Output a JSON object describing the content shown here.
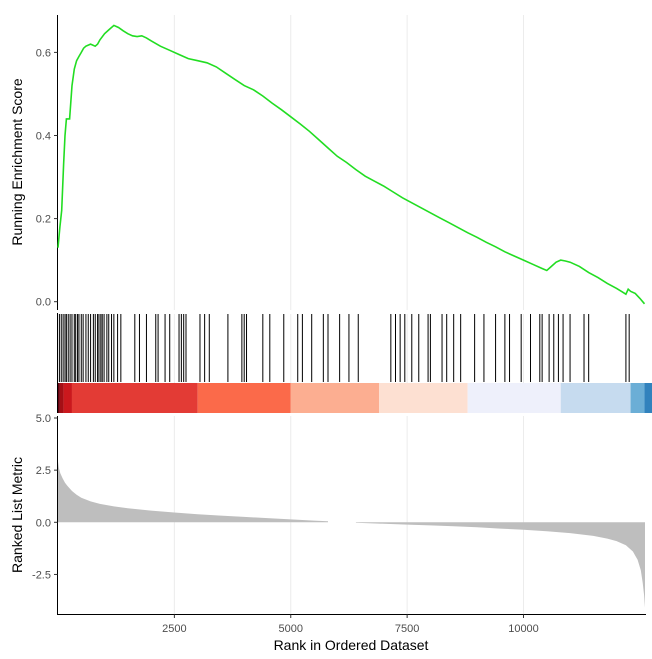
{
  "chart_data": {
    "type": "line",
    "panels": {
      "enrichment": {
        "ylabel": "Running Enrichment Score",
        "yticks": [
          0.0,
          0.2,
          0.4,
          0.6
        ],
        "ytick_labels": [
          "0.0",
          "0.2",
          "0.4",
          "0.6"
        ],
        "ylim": [
          -0.02,
          0.69
        ],
        "color": "#22dd22",
        "points": [
          [
            0,
            0.13
          ],
          [
            40,
            0.18
          ],
          [
            80,
            0.22
          ],
          [
            120,
            0.33
          ],
          [
            150,
            0.4
          ],
          [
            180,
            0.44
          ],
          [
            250,
            0.44
          ],
          [
            300,
            0.52
          ],
          [
            350,
            0.56
          ],
          [
            400,
            0.58
          ],
          [
            450,
            0.59
          ],
          [
            500,
            0.6
          ],
          [
            550,
            0.61
          ],
          [
            600,
            0.615
          ],
          [
            700,
            0.62
          ],
          [
            800,
            0.615
          ],
          [
            850,
            0.62
          ],
          [
            900,
            0.63
          ],
          [
            1000,
            0.645
          ],
          [
            1100,
            0.655
          ],
          [
            1200,
            0.665
          ],
          [
            1300,
            0.66
          ],
          [
            1400,
            0.652
          ],
          [
            1500,
            0.645
          ],
          [
            1600,
            0.64
          ],
          [
            1700,
            0.638
          ],
          [
            1800,
            0.64
          ],
          [
            1900,
            0.635
          ],
          [
            2000,
            0.628
          ],
          [
            2200,
            0.615
          ],
          [
            2400,
            0.605
          ],
          [
            2600,
            0.595
          ],
          [
            2800,
            0.585
          ],
          [
            3000,
            0.58
          ],
          [
            3200,
            0.575
          ],
          [
            3400,
            0.565
          ],
          [
            3600,
            0.55
          ],
          [
            3800,
            0.535
          ],
          [
            4000,
            0.52
          ],
          [
            4200,
            0.51
          ],
          [
            4400,
            0.495
          ],
          [
            4600,
            0.478
          ],
          [
            4800,
            0.462
          ],
          [
            5000,
            0.445
          ],
          [
            5200,
            0.428
          ],
          [
            5400,
            0.41
          ],
          [
            5600,
            0.39
          ],
          [
            5800,
            0.37
          ],
          [
            6000,
            0.35
          ],
          [
            6200,
            0.335
          ],
          [
            6400,
            0.318
          ],
          [
            6600,
            0.302
          ],
          [
            6800,
            0.29
          ],
          [
            7000,
            0.278
          ],
          [
            7200,
            0.264
          ],
          [
            7400,
            0.25
          ],
          [
            7600,
            0.238
          ],
          [
            7800,
            0.226
          ],
          [
            8000,
            0.214
          ],
          [
            8200,
            0.202
          ],
          [
            8400,
            0.19
          ],
          [
            8600,
            0.178
          ],
          [
            8800,
            0.166
          ],
          [
            9000,
            0.155
          ],
          [
            9200,
            0.143
          ],
          [
            9400,
            0.132
          ],
          [
            9600,
            0.12
          ],
          [
            9800,
            0.11
          ],
          [
            10000,
            0.1
          ],
          [
            10200,
            0.09
          ],
          [
            10400,
            0.08
          ],
          [
            10500,
            0.075
          ],
          [
            10600,
            0.085
          ],
          [
            10700,
            0.095
          ],
          [
            10800,
            0.1
          ],
          [
            10900,
            0.098
          ],
          [
            11000,
            0.095
          ],
          [
            11200,
            0.085
          ],
          [
            11400,
            0.07
          ],
          [
            11600,
            0.058
          ],
          [
            11800,
            0.044
          ],
          [
            12000,
            0.032
          ],
          [
            12100,
            0.025
          ],
          [
            12200,
            0.018
          ],
          [
            12250,
            0.03
          ],
          [
            12300,
            0.025
          ],
          [
            12400,
            0.02
          ],
          [
            12500,
            0.008
          ],
          [
            12600,
            -0.005
          ]
        ]
      },
      "hits": {
        "positions": [
          30,
          70,
          110,
          150,
          180,
          220,
          260,
          300,
          350,
          380,
          420,
          450,
          500,
          540,
          600,
          650,
          700,
          760,
          800,
          850,
          880,
          920,
          950,
          990,
          1050,
          1090,
          1150,
          1200,
          1280,
          1350,
          1650,
          1750,
          1900,
          2100,
          2150,
          2300,
          2400,
          2600,
          2650,
          2700,
          2750,
          3050,
          3150,
          3250,
          3650,
          3950,
          4000,
          4050,
          4400,
          4550,
          4850,
          5150,
          5250,
          5450,
          5700,
          5800,
          6050,
          6250,
          6450,
          7150,
          7250,
          7350,
          7450,
          7600,
          7750,
          7950,
          8000,
          8250,
          8350,
          8500,
          8650,
          8950,
          9150,
          9400,
          9600,
          9700,
          9950,
          10150,
          10350,
          10400,
          10550,
          10650,
          10750,
          10850,
          11000,
          11300,
          11400,
          12200,
          12270
        ]
      },
      "colorbar": {
        "segments": [
          {
            "from": 0,
            "to": 40,
            "color": "#67000d"
          },
          {
            "from": 40,
            "to": 120,
            "color": "#a50f15"
          },
          {
            "from": 120,
            "to": 300,
            "color": "#cb181d"
          },
          {
            "from": 300,
            "to": 3000,
            "color": "#e33b35"
          },
          {
            "from": 3000,
            "to": 5000,
            "color": "#fb6a4a"
          },
          {
            "from": 5000,
            "to": 6900,
            "color": "#fcae91"
          },
          {
            "from": 6900,
            "to": 8800,
            "color": "#fde0d2"
          },
          {
            "from": 8800,
            "to": 10800,
            "color": "#eef0fb"
          },
          {
            "from": 10800,
            "to": 12300,
            "color": "#c6dbef"
          },
          {
            "from": 12300,
            "to": 12600,
            "color": "#6baed6"
          },
          {
            "from": 12600,
            "to": 12778,
            "color": "#3182bd"
          }
        ]
      },
      "ranked": {
        "ylabel": "Ranked List Metric",
        "yticks": [
          -2.5,
          0.0,
          2.5,
          5.0
        ],
        "ytick_labels": [
          "-2.5",
          "0.0",
          "2.5",
          "5.0"
        ],
        "ylim": [
          -4.3,
          5.0
        ],
        "fill_color": "#bebebe",
        "zero_cross": 6400,
        "gap": [
          5800,
          6400
        ],
        "points": [
          [
            0,
            2.9
          ],
          [
            20,
            2.6
          ],
          [
            50,
            2.35
          ],
          [
            100,
            2.1
          ],
          [
            150,
            1.9
          ],
          [
            200,
            1.75
          ],
          [
            300,
            1.5
          ],
          [
            400,
            1.32
          ],
          [
            500,
            1.18
          ],
          [
            700,
            1.0
          ],
          [
            900,
            0.88
          ],
          [
            1200,
            0.76
          ],
          [
            1500,
            0.67
          ],
          [
            2000,
            0.56
          ],
          [
            2500,
            0.47
          ],
          [
            3000,
            0.39
          ],
          [
            3500,
            0.32
          ],
          [
            4000,
            0.26
          ],
          [
            4500,
            0.2
          ],
          [
            5000,
            0.14
          ],
          [
            5500,
            0.08
          ],
          [
            5800,
            0.05
          ],
          [
            6400,
            -0.02
          ],
          [
            7000,
            -0.07
          ],
          [
            7500,
            -0.11
          ],
          [
            8000,
            -0.15
          ],
          [
            8500,
            -0.19
          ],
          [
            9000,
            -0.24
          ],
          [
            9500,
            -0.3
          ],
          [
            10000,
            -0.36
          ],
          [
            10500,
            -0.43
          ],
          [
            11000,
            -0.52
          ],
          [
            11500,
            -0.65
          ],
          [
            11800,
            -0.78
          ],
          [
            12000,
            -0.9
          ],
          [
            12200,
            -1.1
          ],
          [
            12350,
            -1.4
          ],
          [
            12450,
            -1.8
          ],
          [
            12520,
            -2.3
          ],
          [
            12560,
            -2.9
          ],
          [
            12590,
            -3.5
          ],
          [
            12610,
            -4.1
          ]
        ]
      }
    },
    "xlabel": "Rank in Ordered Dataset",
    "xticks": [
      2500,
      5000,
      7500,
      10000
    ],
    "xtick_labels": [
      "2500",
      "5000",
      "7500",
      "10000"
    ],
    "xlim": [
      0,
      12610
    ]
  }
}
